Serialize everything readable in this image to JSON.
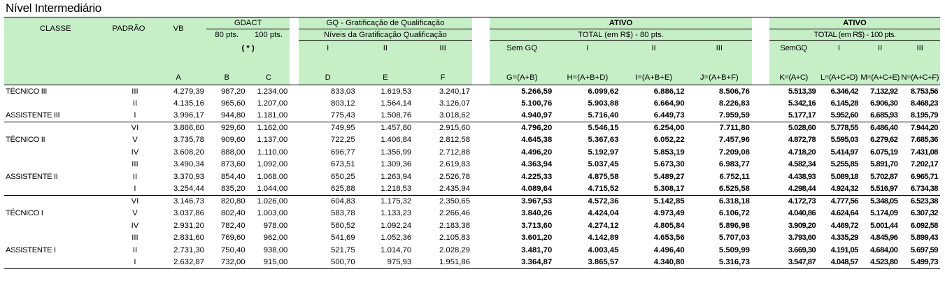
{
  "title": "Nível Intermediário",
  "header": {
    "classe": "CLASSE",
    "padrao": "PADRÃO",
    "vb": "VB",
    "gdact": "GDACT",
    "gdact_80": "80 pts.",
    "gdact_100": "100 pts.",
    "gdact_note": "( * )",
    "gq": "GQ - Gratificação de Qualificação",
    "gq_niveis": "Níveis da Gratificação Qualificação",
    "gq_levels": [
      "I",
      "II",
      "III"
    ],
    "ativo_80": "ATIVO",
    "total_80": "TOTAL (em R$) - 80 pts.",
    "sub_80": [
      "Sem GQ",
      "I",
      "II",
      "III"
    ],
    "ativo_100": "ATIVO",
    "total_100": "TOTAL (em R$) - 100 pts.",
    "sub_100": [
      "SemGQ",
      "I",
      "II",
      "III"
    ],
    "letters": [
      "A",
      "B",
      "C",
      "D",
      "E",
      "F",
      "G=(A+B)",
      "H=(A+B+D)",
      "I=(A+B+E)",
      "J=(A+B+F)",
      "K=(A+C)",
      "L=(A+C+D)",
      "M=(A+C+E)",
      "N=(A+C+F)"
    ]
  },
  "rows": [
    [
      "TÉCNICO III",
      "III",
      "4.279,39",
      "987,20",
      "1.234,00",
      "833,03",
      "1.619,53",
      "3.240,17",
      "5.266,59",
      "6.099,62",
      "6.886,12",
      "8.506,76",
      "5.513,39",
      "6.346,42",
      "7.132,92",
      "8.753,56"
    ],
    [
      "",
      "II",
      "4.135,16",
      "965,60",
      "1.207,00",
      "803,12",
      "1.564,14",
      "3.126,07",
      "5.100,76",
      "5.903,88",
      "6.664,90",
      "8.226,83",
      "5.342,16",
      "6.145,28",
      "6.906,30",
      "8.468,23"
    ],
    [
      "ASSISTENTE III",
      "I",
      "3.996,17",
      "944,80",
      "1.181,00",
      "775,43",
      "1.508,76",
      "3.018,62",
      "4.940,97",
      "5.716,40",
      "6.449,73",
      "7.959,59",
      "5.177,17",
      "5.952,60",
      "6.685,93",
      "8.195,79"
    ],
    [
      "",
      "VI",
      "3.866,60",
      "929,60",
      "1.162,00",
      "749,95",
      "1.457,80",
      "2.915,60",
      "4.796,20",
      "5.546,15",
      "6.254,00",
      "7.711,80",
      "5.028,60",
      "5.778,55",
      "6.486,40",
      "7.944,20"
    ],
    [
      "TÉCNICO II",
      "V",
      "3.735,78",
      "909,60",
      "1.137,00",
      "722,25",
      "1.406,84",
      "2.812,58",
      "4.645,38",
      "5.367,63",
      "6.052,22",
      "7.457,96",
      "4.872,78",
      "5.595,03",
      "6.279,62",
      "7.685,36"
    ],
    [
      "",
      "IV",
      "3.608,20",
      "888,00",
      "1.110,00",
      "696,77",
      "1.356,99",
      "2.712,88",
      "4.496,20",
      "5.192,97",
      "5.853,19",
      "7.209,08",
      "4.718,20",
      "5.414,97",
      "6.075,19",
      "7.431,08"
    ],
    [
      "",
      "III",
      "3.490,34",
      "873,60",
      "1.092,00",
      "673,51",
      "1.309,36",
      "2.619,83",
      "4.363,94",
      "5.037,45",
      "5.673,30",
      "6.983,77",
      "4.582,34",
      "5.255,85",
      "5.891,70",
      "7.202,17"
    ],
    [
      "ASSISTENTE II",
      "II",
      "3.370,93",
      "854,40",
      "1.068,00",
      "650,25",
      "1.263,94",
      "2.526,78",
      "4.225,33",
      "4.875,58",
      "5.489,27",
      "6.752,11",
      "4.438,93",
      "5.089,18",
      "5.702,87",
      "6.965,71"
    ],
    [
      "",
      "I",
      "3.254,44",
      "835,20",
      "1.044,00",
      "625,88",
      "1.218,53",
      "2.435,94",
      "4.089,64",
      "4.715,52",
      "5.308,17",
      "6.525,58",
      "4.298,44",
      "4.924,32",
      "5.516,97",
      "6.734,38"
    ],
    [
      "",
      "VI",
      "3.146,73",
      "820,80",
      "1.026,00",
      "604,83",
      "1.175,32",
      "2.350,65",
      "3.967,53",
      "4.572,36",
      "5.142,85",
      "6.318,18",
      "4.172,73",
      "4.777,56",
      "5.348,05",
      "6.523,38"
    ],
    [
      "TÉCNICO I",
      "V",
      "3.037,86",
      "802,40",
      "1.003,00",
      "583,78",
      "1.133,23",
      "2.266,46",
      "3.840,26",
      "4.424,04",
      "4.973,49",
      "6.106,72",
      "4.040,86",
      "4.624,64",
      "5.174,09",
      "6.307,32"
    ],
    [
      "",
      "IV",
      "2.931,20",
      "782,40",
      "978,00",
      "560,52",
      "1.092,24",
      "2.183,38",
      "3.713,60",
      "4.274,12",
      "4.805,84",
      "5.896,98",
      "3.909,20",
      "4.469,72",
      "5.001,44",
      "6.092,58"
    ],
    [
      "",
      "III",
      "2.831,60",
      "769,60",
      "962,00",
      "541,69",
      "1.052,36",
      "2.105,83",
      "3.601,20",
      "4.142,89",
      "4.653,56",
      "5.707,03",
      "3.793,60",
      "4.335,29",
      "4.845,96",
      "5.899,43"
    ],
    [
      "ASSISTENTE I",
      "II",
      "2.731,30",
      "750,40",
      "938,00",
      "521,75",
      "1.014,70",
      "2.028,29",
      "3.481,70",
      "4.003,45",
      "4.496,40",
      "5.509,99",
      "3.669,30",
      "4.191,05",
      "4.684,00",
      "5.697,59"
    ],
    [
      "",
      "I",
      "2.632,87",
      "732,00",
      "915,00",
      "500,70",
      "975,93",
      "1.951,86",
      "3.364,87",
      "3.865,57",
      "4.340,80",
      "5.316,73",
      "3.547,87",
      "4.048,57",
      "4.523,80",
      "5.499,73"
    ]
  ]
}
